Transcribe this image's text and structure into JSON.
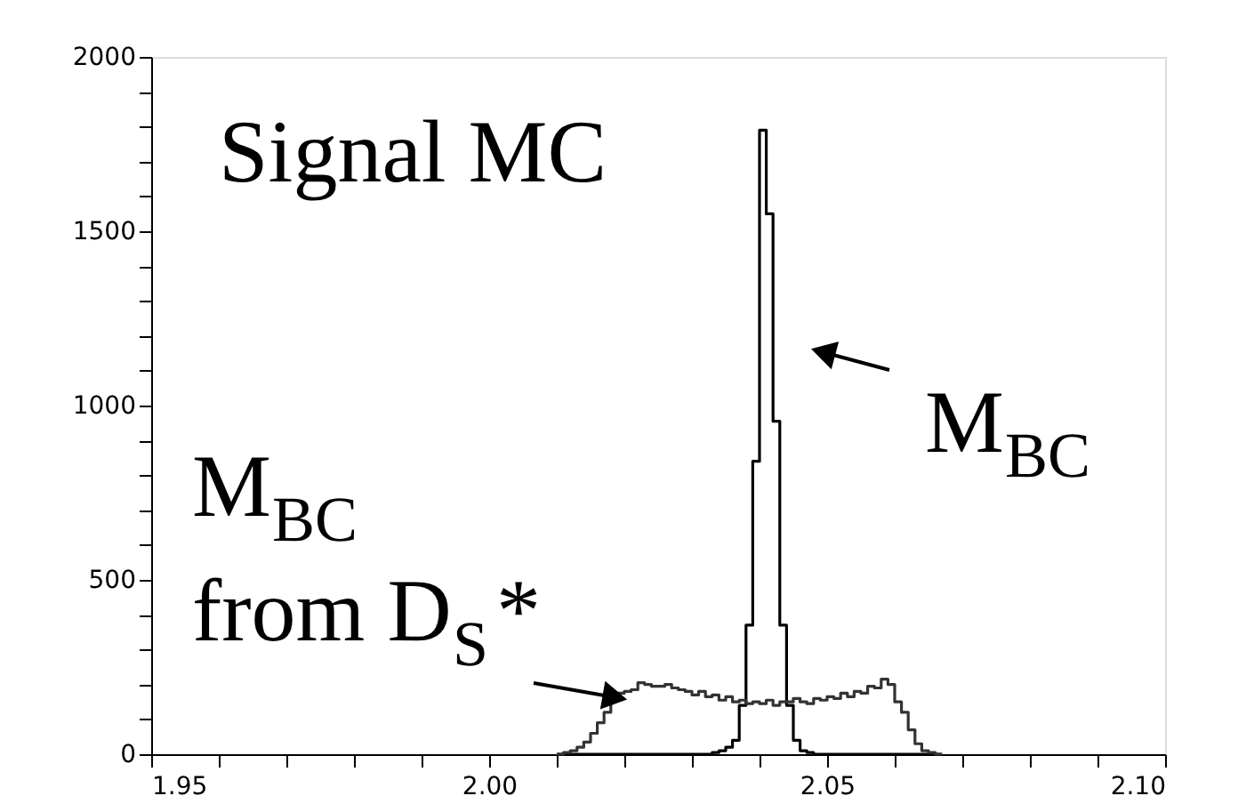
{
  "chart_data": {
    "type": "histogram",
    "bins": [
      2.01,
      2.011,
      2.012,
      2.013,
      2.014,
      2.015,
      2.016,
      2.017,
      2.018,
      2.019,
      2.02,
      2.021,
      2.022,
      2.023,
      2.024,
      2.025,
      2.026,
      2.027,
      2.028,
      2.029,
      2.03,
      2.031,
      2.032,
      2.033,
      2.034,
      2.035,
      2.036,
      2.037,
      2.038,
      2.039,
      2.04,
      2.041,
      2.042,
      2.043,
      2.044,
      2.045,
      2.046,
      2.047,
      2.048,
      2.049,
      2.05,
      2.051,
      2.052,
      2.053,
      2.054,
      2.055,
      2.056,
      2.057,
      2.058,
      2.059,
      2.06,
      2.061,
      2.062,
      2.063,
      2.064,
      2.065,
      2.066,
      2.067
    ],
    "series": [
      {
        "color": "#000000",
        "values": [
          0,
          0,
          0,
          0,
          0,
          0,
          0,
          0,
          0,
          0,
          0,
          0,
          0,
          0,
          0,
          0,
          0,
          0,
          0,
          0,
          0,
          0,
          0,
          5,
          10,
          20,
          40,
          140,
          370,
          840,
          1790,
          1550,
          955,
          370,
          140,
          40,
          10,
          5,
          0,
          0,
          0,
          0,
          0,
          0,
          0,
          0,
          0,
          0,
          0,
          0,
          0,
          0,
          0,
          0,
          0,
          0,
          0
        ]
      },
      {
        "color": "#333333",
        "values": [
          0,
          5,
          10,
          20,
          35,
          60,
          90,
          120,
          165,
          175,
          180,
          185,
          205,
          200,
          195,
          195,
          200,
          190,
          185,
          180,
          170,
          180,
          165,
          170,
          155,
          165,
          150,
          155,
          145,
          150,
          145,
          155,
          140,
          150,
          150,
          160,
          150,
          145,
          160,
          155,
          165,
          160,
          175,
          165,
          180,
          175,
          195,
          190,
          215,
          200,
          150,
          120,
          70,
          30,
          10,
          5,
          0
        ]
      }
    ],
    "xlim": [
      1.95,
      2.1
    ],
    "xticks": [
      1.95,
      {
        "value": 1.96,
        "label": null
      },
      {
        "value": 1.97,
        "label": null
      },
      {
        "value": 1.98,
        "label": null
      },
      {
        "value": 1.99,
        "label": null
      },
      {
        "value": 2.0,
        "label": "2.00"
      },
      {
        "value": 2.01,
        "label": null
      },
      {
        "value": 2.02,
        "label": null
      },
      {
        "value": 2.03,
        "label": null
      },
      {
        "value": 2.04,
        "label": null
      },
      2.05,
      {
        "value": 2.06,
        "label": null
      },
      {
        "value": 2.07,
        "label": null
      },
      {
        "value": 2.08,
        "label": null
      },
      {
        "value": 2.09,
        "label": null
      },
      {
        "value": 2.1,
        "label": "2.10"
      }
    ],
    "ylim": [
      0,
      2000
    ],
    "yticks": [
      0,
      {
        "value": 100,
        "label": null
      },
      {
        "value": 200,
        "label": null
      },
      {
        "value": 300,
        "label": null
      },
      {
        "value": 400,
        "label": null
      },
      500,
      {
        "value": 600,
        "label": null
      },
      {
        "value": 700,
        "label": null
      },
      {
        "value": 800,
        "label": null
      },
      {
        "value": 900,
        "label": null
      },
      1000,
      {
        "value": 1100,
        "label": null
      },
      {
        "value": 1200,
        "label": null
      },
      {
        "value": 1300,
        "label": null
      },
      {
        "value": 1400,
        "label": null
      },
      1500,
      {
        "value": 1600,
        "label": null
      },
      {
        "value": 1700,
        "label": null
      },
      {
        "value": 1800,
        "label": null
      },
      {
        "value": 1900,
        "label": null
      },
      2000
    ],
    "grid": false,
    "legend": false,
    "annotations": [
      "Signal MC",
      {
        "text": "M$_{BC}$",
        "x": 2.05,
        "y": 1150
      },
      {
        "text": "M$_{BC}$ from D$_{S}$*",
        "x": 2.018,
        "y": 165
      }
    ]
  }
}
